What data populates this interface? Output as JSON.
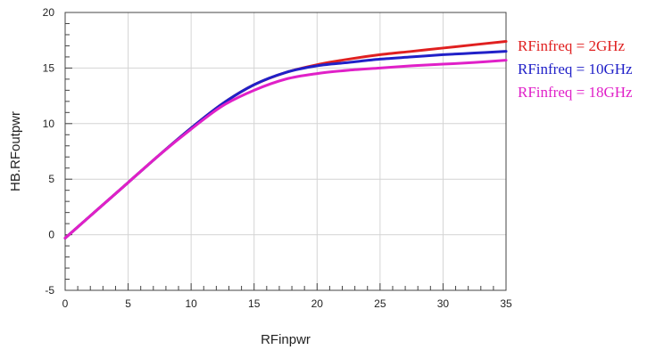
{
  "chart_data": {
    "type": "line",
    "title": "",
    "xlabel": "RFinpwr",
    "ylabel": "HB.RFoutpwr",
    "xlim": [
      0,
      35
    ],
    "ylim": [
      -5,
      20
    ],
    "x_ticks": [
      0,
      5,
      10,
      15,
      20,
      25,
      30,
      35
    ],
    "y_ticks": [
      -5,
      0,
      5,
      10,
      15,
      20
    ],
    "x_tick_labels": [
      "0",
      "5",
      "10",
      "15",
      "20",
      "25",
      "30",
      "35"
    ],
    "y_tick_labels": [
      "-5",
      "0",
      "5",
      "10",
      "15",
      "20"
    ],
    "grid": true,
    "legend_position": "right",
    "x": [
      0,
      2.5,
      5,
      7.5,
      10,
      12.5,
      15,
      17.5,
      20,
      22.5,
      25,
      27.5,
      30,
      32.5,
      35
    ],
    "series": [
      {
        "name": "RFinfreq = 2GHz",
        "color": "#e02020",
        "values": [
          -0.3,
          2.2,
          4.7,
          7.2,
          9.6,
          11.8,
          13.5,
          14.6,
          15.3,
          15.8,
          16.2,
          16.5,
          16.8,
          17.1,
          17.4
        ]
      },
      {
        "name": "RFinfreq = 10GHz",
        "color": "#2020c8",
        "values": [
          -0.3,
          2.2,
          4.7,
          7.2,
          9.6,
          11.8,
          13.5,
          14.6,
          15.2,
          15.5,
          15.8,
          16.0,
          16.2,
          16.35,
          16.5
        ]
      },
      {
        "name": "RFinfreq = 18GHz",
        "color": "#e020c8",
        "values": [
          -0.3,
          2.2,
          4.7,
          7.2,
          9.5,
          11.6,
          13.0,
          14.0,
          14.5,
          14.8,
          15.0,
          15.2,
          15.35,
          15.5,
          15.7
        ]
      }
    ]
  }
}
